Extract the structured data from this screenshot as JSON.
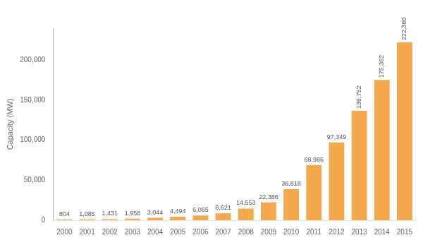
{
  "chart_data": {
    "type": "bar",
    "categories": [
      "2000",
      "2001",
      "2002",
      "2003",
      "2004",
      "2005",
      "2006",
      "2007",
      "2008",
      "2009",
      "2010",
      "2011",
      "2012",
      "2013",
      "2014",
      "2015"
    ],
    "values": [
      804,
      1085,
      1431,
      1958,
      3044,
      4494,
      6065,
      8621,
      14553,
      22386,
      38818,
      68986,
      97349,
      136752,
      175362,
      222360
    ],
    "value_labels": [
      "804",
      "1,085",
      "1,431",
      "1,958",
      "3,044",
      "4,494",
      "6,065",
      "8,621",
      "14,553",
      "22,386",
      "38,818",
      "68,986",
      "97,349",
      "136,752",
      "175,362",
      "222,360"
    ],
    "data_labels": true,
    "color": "#f5a94e",
    "ylabel": "Capacity (MW)",
    "ylim": [
      0,
      240000
    ],
    "yticks": [
      0,
      {
        "value": 50000,
        "label": "50,000"
      },
      {
        "value": 100000,
        "label": "100,000"
      },
      {
        "value": 150000,
        "label": "150,000"
      },
      {
        "value": 200000,
        "label": "200,000"
      }
    ],
    "grid": false
  }
}
